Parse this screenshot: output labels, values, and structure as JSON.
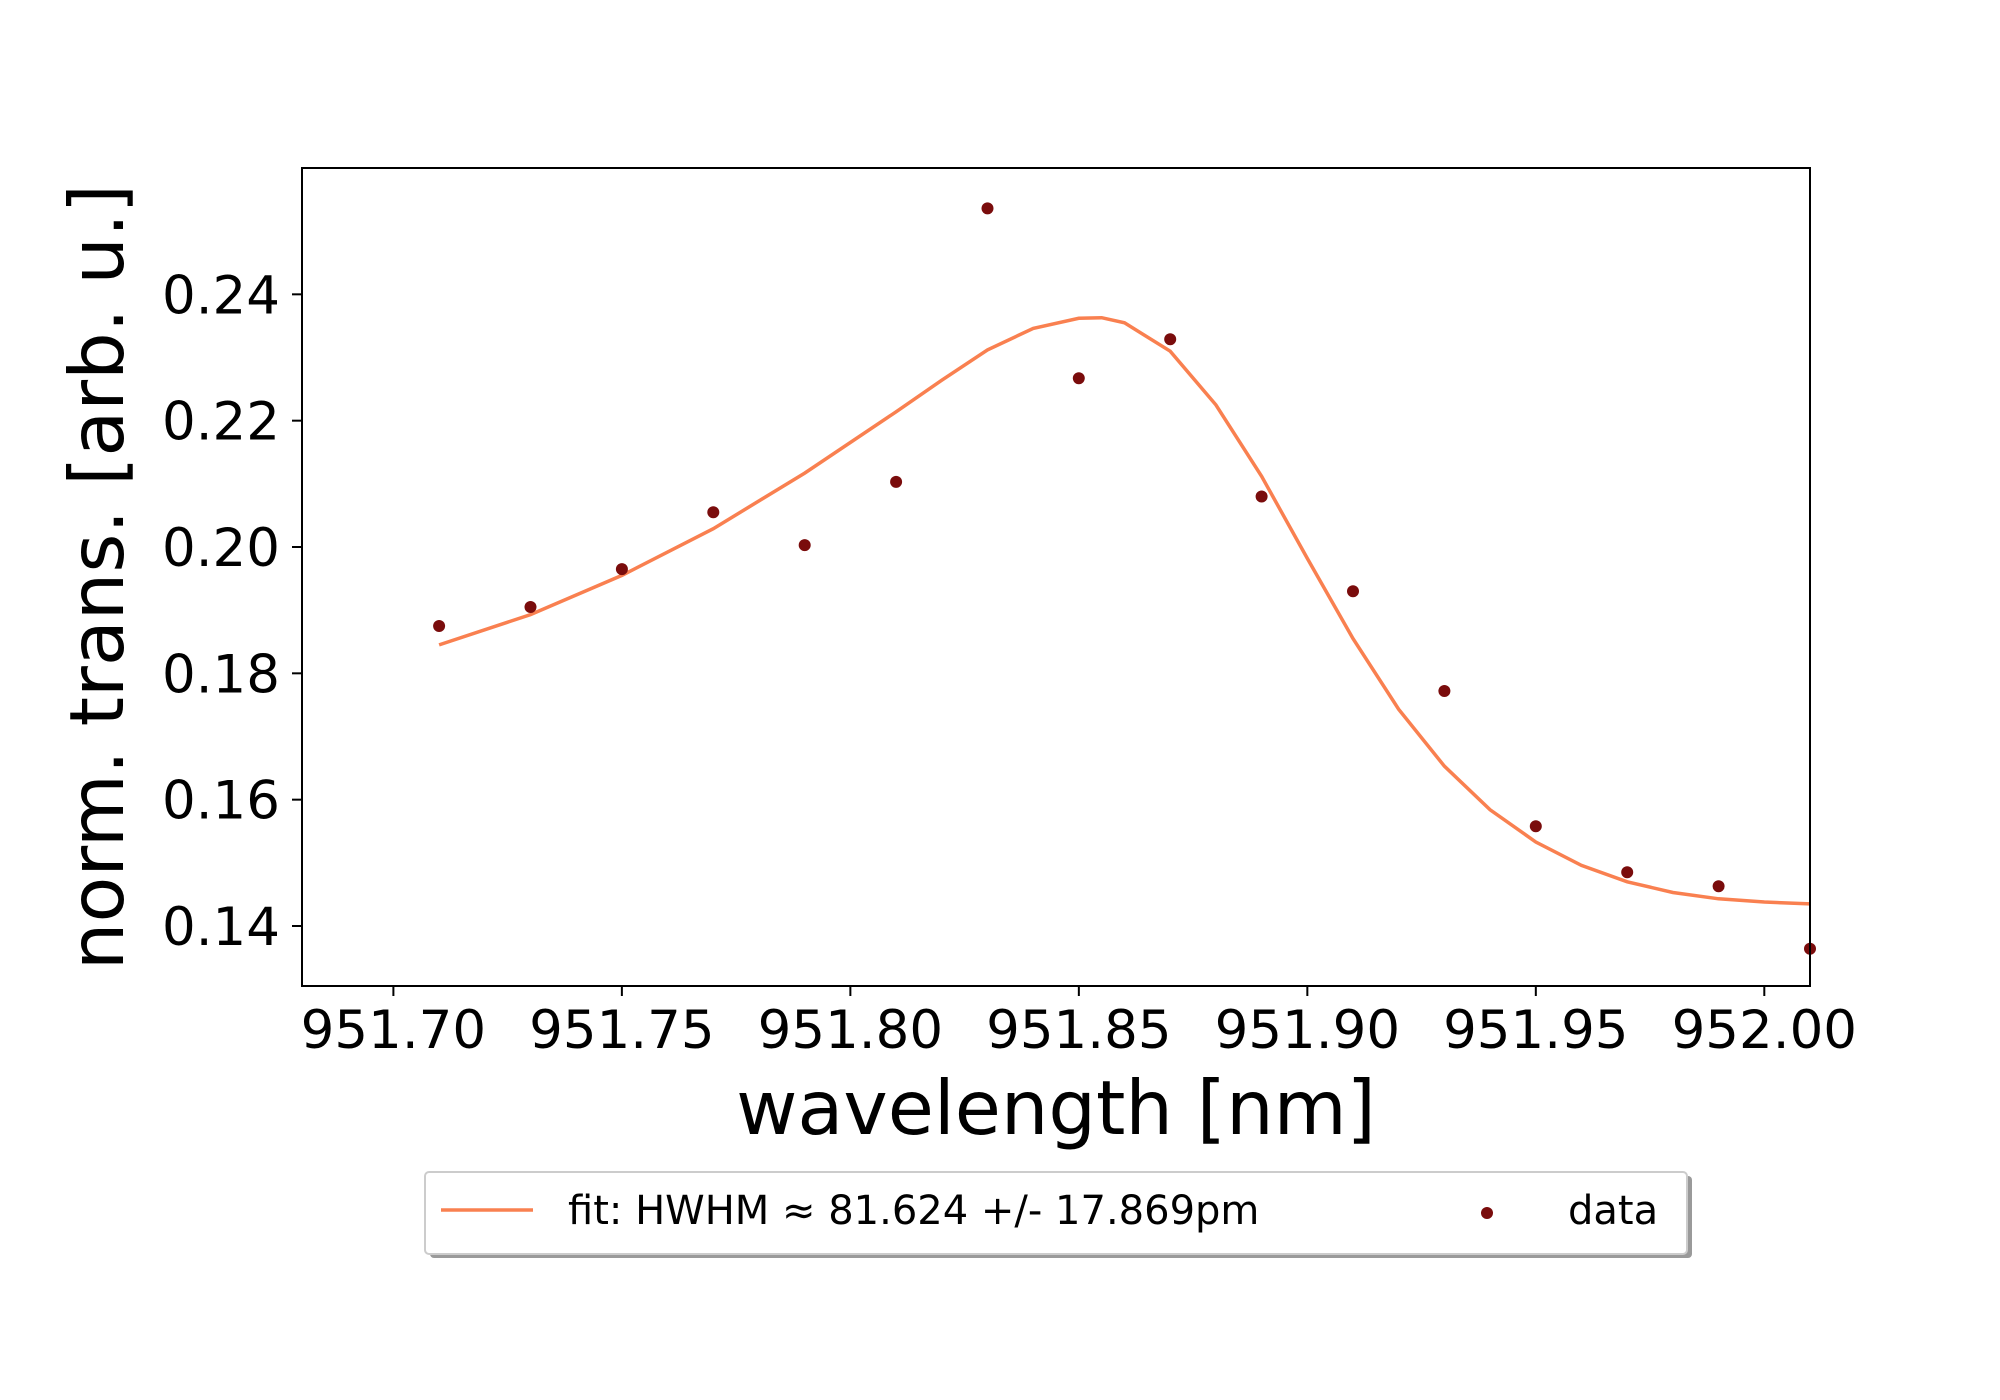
{
  "chart_data": {
    "type": "scatter",
    "title": "",
    "xlabel": "wavelength [nm]",
    "ylabel": "norm. trans. [arb. u.]",
    "xlim": [
      951.68,
      952.01
    ],
    "ylim": [
      0.1305,
      0.26
    ],
    "x_ticks": [
      951.7,
      951.75,
      951.8,
      951.85,
      951.9,
      951.95,
      952.0
    ],
    "x_tick_labels": [
      "951.70",
      "951.75",
      "951.80",
      "951.85",
      "951.90",
      "951.95",
      "952.00"
    ],
    "y_ticks": [
      0.14,
      0.16,
      0.18,
      0.2,
      0.22,
      0.24
    ],
    "y_tick_labels": [
      "0.14",
      "0.16",
      "0.18",
      "0.20",
      "0.22",
      "0.24"
    ],
    "grid": false,
    "legend_position": "bottom-center-outside",
    "colors": {
      "fit": "#f98050",
      "data": "#7a0c0c"
    },
    "series": [
      {
        "name": "fit: HWHM ≈ 81.624 +/- 17.869pm",
        "kind": "line",
        "x": [
          951.71,
          951.73,
          951.75,
          951.77,
          951.79,
          951.81,
          951.82,
          951.83,
          951.84,
          951.85,
          951.855,
          951.86,
          951.87,
          951.88,
          951.89,
          951.9,
          951.91,
          951.92,
          951.93,
          951.94,
          951.95,
          951.96,
          951.97,
          951.98,
          951.99,
          952.0,
          952.01
        ],
        "y": [
          0.1845,
          0.1893,
          0.1955,
          0.2029,
          0.2117,
          0.2214,
          0.2264,
          0.2312,
          0.2346,
          0.2362,
          0.2363,
          0.2355,
          0.231,
          0.2225,
          0.2112,
          0.1982,
          0.1855,
          0.1743,
          0.1653,
          0.1584,
          0.1533,
          0.1496,
          0.147,
          0.1453,
          0.1443,
          0.1438,
          0.1435
        ]
      },
      {
        "name": "data",
        "kind": "scatter",
        "x": [
          951.71,
          951.73,
          951.75,
          951.77,
          951.79,
          951.81,
          951.83,
          951.85,
          951.87,
          951.89,
          951.91,
          951.93,
          951.95,
          951.97,
          951.99,
          952.01
        ],
        "y": [
          0.1875,
          0.1905,
          0.1965,
          0.2055,
          0.2003,
          0.2103,
          0.2536,
          0.2267,
          0.2329,
          0.208,
          0.193,
          0.1772,
          0.1558,
          0.1485,
          0.1463,
          0.1364
        ]
      }
    ]
  }
}
